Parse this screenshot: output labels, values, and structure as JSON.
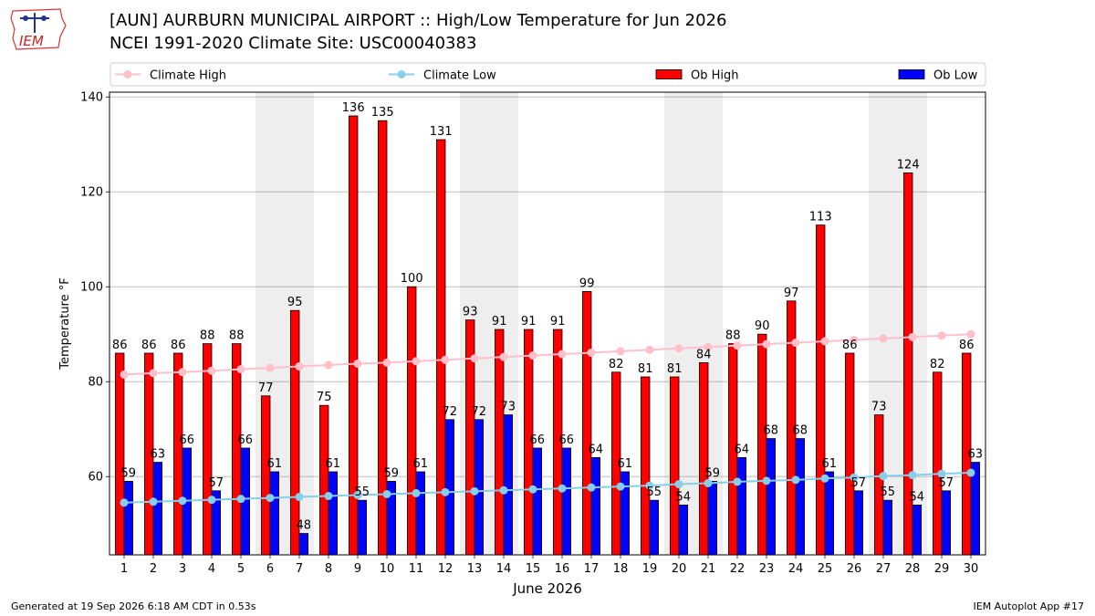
{
  "header": {
    "title_line1": "[AUN] AURBURN MUNICIPAL AIRPORT :: High/Low Temperature for Jun 2026",
    "title_line2": "NCEI 1991-2020 Climate Site: USC00040383",
    "logo_text": "IEM"
  },
  "footer": {
    "left": "Generated at 19 Sep 2026 6:18 AM CDT in 0.53s",
    "right": "IEM Autoplot App #17"
  },
  "colors": {
    "ob_high": "#ff0000",
    "ob_low": "#0000ff",
    "climate_high": "#ffc0cb",
    "climate_low": "#87ceeb",
    "weekend_shade": "#eeeeee"
  },
  "chart_data": {
    "type": "bar",
    "xlabel": "June 2026",
    "ylabel": "Temperature °F",
    "ylim": [
      43.5,
      141
    ],
    "yticks": [
      60,
      80,
      100,
      120,
      140
    ],
    "grid": true,
    "legend_position": "top",
    "x": [
      1,
      2,
      3,
      4,
      5,
      6,
      7,
      8,
      9,
      10,
      11,
      12,
      13,
      14,
      15,
      16,
      17,
      18,
      19,
      20,
      21,
      22,
      23,
      24,
      25,
      26,
      27,
      28,
      29,
      30
    ],
    "shaded_days": [
      6,
      7,
      13,
      14,
      20,
      21,
      27,
      28
    ],
    "series": [
      {
        "name": "Climate High",
        "kind": "line",
        "values": [
          81.5,
          81.8,
          82.0,
          82.3,
          82.6,
          82.9,
          83.2,
          83.5,
          83.8,
          84.0,
          84.3,
          84.6,
          84.9,
          85.2,
          85.5,
          85.8,
          86.1,
          86.4,
          86.7,
          87.0,
          87.3,
          87.6,
          87.9,
          88.2,
          88.5,
          88.8,
          89.1,
          89.4,
          89.7,
          90.0
        ]
      },
      {
        "name": "Climate Low",
        "kind": "line",
        "values": [
          54.5,
          54.7,
          54.9,
          55.1,
          55.3,
          55.5,
          55.7,
          55.9,
          56.1,
          56.3,
          56.5,
          56.7,
          56.9,
          57.1,
          57.3,
          57.5,
          57.7,
          57.9,
          58.1,
          58.4,
          58.6,
          58.9,
          59.1,
          59.3,
          59.6,
          59.8,
          60.1,
          60.3,
          60.6,
          60.8
        ]
      },
      {
        "name": "Ob High",
        "kind": "bar",
        "values": [
          86,
          86,
          86,
          88,
          88,
          77,
          95,
          75,
          136,
          135,
          100,
          131,
          93,
          91,
          91,
          91,
          99,
          82,
          81,
          81,
          84,
          88,
          90,
          97,
          113,
          86,
          73,
          124,
          82,
          86
        ]
      },
      {
        "name": "Ob Low",
        "kind": "bar",
        "values": [
          59,
          63,
          66,
          57,
          66,
          61,
          48,
          61,
          55,
          59,
          61,
          72,
          72,
          73,
          66,
          66,
          64,
          61,
          55,
          54,
          59,
          64,
          68,
          68,
          61,
          57,
          55,
          54,
          57,
          63
        ]
      }
    ]
  }
}
